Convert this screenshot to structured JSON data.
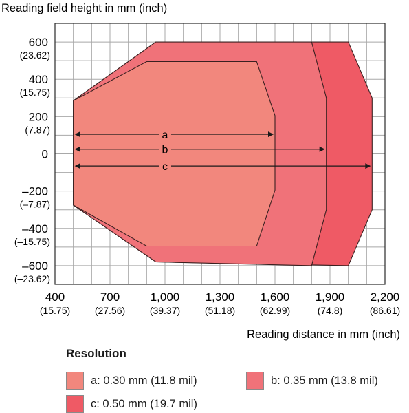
{
  "chart_data": {
    "type": "area",
    "ylabel": "Reading field height in mm (inch)",
    "xlabel": "Reading distance in mm (inch)",
    "xlim": [
      400,
      2200
    ],
    "ylim": [
      -700,
      700
    ],
    "x_ticks": [
      {
        "value": 400,
        "label": "400",
        "sub": "(15.75)"
      },
      {
        "value": 700,
        "label": "700",
        "sub": "(27.56)"
      },
      {
        "value": 1000,
        "label": "1,000",
        "sub": "(39.37)"
      },
      {
        "value": 1300,
        "label": "1,300",
        "sub": "(51.18)"
      },
      {
        "value": 1600,
        "label": "1,600",
        "sub": "(62.99)"
      },
      {
        "value": 1900,
        "label": "1,900",
        "sub": "(74.8)"
      },
      {
        "value": 2200,
        "label": "2,200",
        "sub": "(86.61)"
      }
    ],
    "y_ticks": [
      {
        "value": 600,
        "label": "600",
        "sub": "(23.62)"
      },
      {
        "value": 400,
        "label": "400",
        "sub": "(15.75)"
      },
      {
        "value": 200,
        "label": "200",
        "sub": "(7.87)"
      },
      {
        "value": 0,
        "label": "0",
        "sub": ""
      },
      {
        "value": -200,
        "label": "–200",
        "sub": "(–7.87)"
      },
      {
        "value": -400,
        "label": "–400",
        "sub": "(–15.75)"
      },
      {
        "value": -600,
        "label": "–600",
        "sub": "(–23.62)"
      }
    ],
    "grid": true,
    "series": [
      {
        "key": "c",
        "color": "#ef5a65",
        "outline": [
          [
            500,
            285
          ],
          [
            500,
            -275
          ],
          [
            950,
            -580
          ],
          [
            2000,
            -600
          ],
          [
            2130,
            -300
          ],
          [
            2130,
            300
          ],
          [
            2000,
            600
          ],
          [
            950,
            600
          ],
          [
            500,
            285
          ]
        ],
        "arrow_y": -65
      },
      {
        "key": "b",
        "color": "#f07279",
        "outline": [
          [
            500,
            285
          ],
          [
            500,
            -275
          ],
          [
            950,
            -580
          ],
          [
            1800,
            -600
          ],
          [
            1880,
            -300
          ],
          [
            1880,
            300
          ],
          [
            1800,
            600
          ],
          [
            950,
            600
          ],
          [
            500,
            285
          ]
        ],
        "arrow_y": 25
      },
      {
        "key": "a",
        "color": "#f2877d",
        "outline": [
          [
            500,
            285
          ],
          [
            500,
            -275
          ],
          [
            900,
            -495
          ],
          [
            1500,
            -495
          ],
          [
            1600,
            -195
          ],
          [
            1600,
            205
          ],
          [
            1500,
            495
          ],
          [
            900,
            495
          ],
          [
            500,
            285
          ]
        ],
        "arrow_y": 105
      }
    ],
    "arrow_labels": {
      "a": "a",
      "b": "b",
      "c": "c"
    }
  },
  "legend": {
    "title": "Resolution",
    "items": [
      {
        "label": "a: 0.30 mm (11.8 mil)",
        "color": "#f2877d"
      },
      {
        "label": "b: 0.35 mm (13.8 mil)",
        "color": "#f07279"
      },
      {
        "label": "c: 0.50 mm (19.7 mil)",
        "color": "#ef5a65"
      }
    ]
  }
}
